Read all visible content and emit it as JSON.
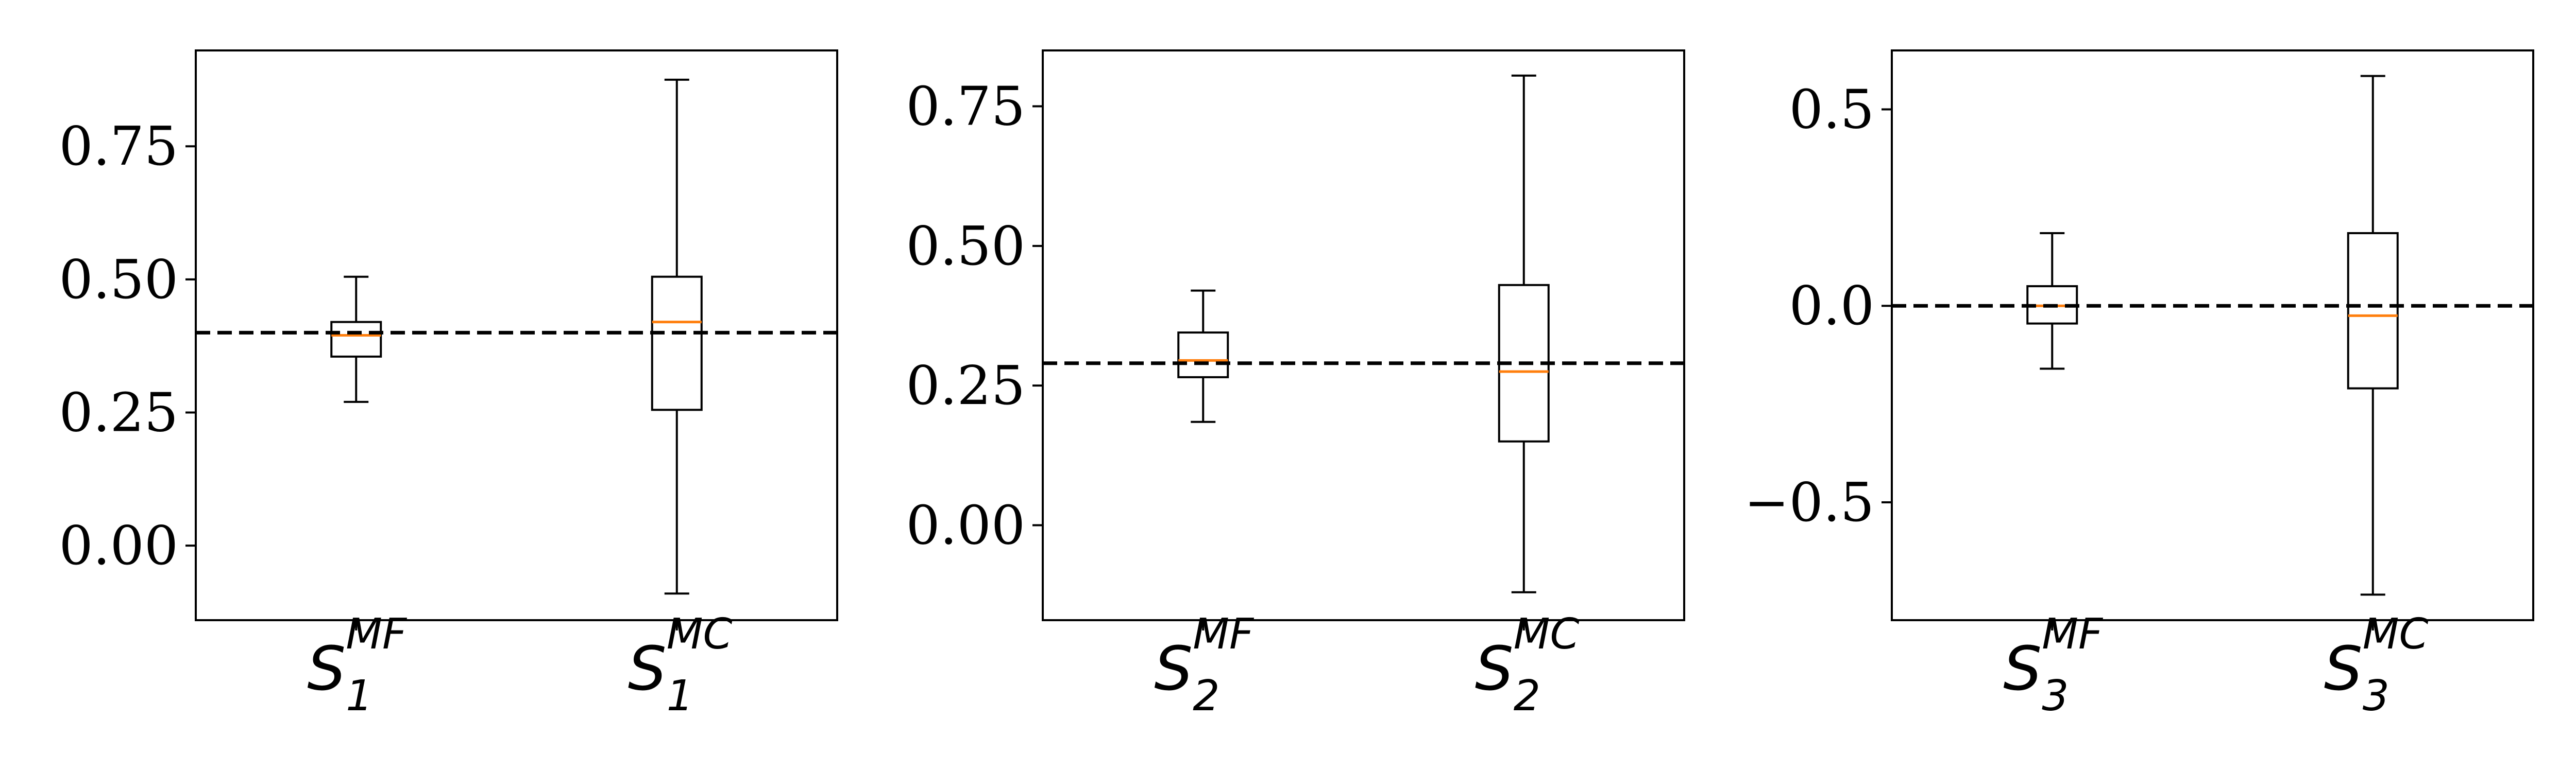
{
  "chart_data": [
    {
      "type": "box",
      "reference_line": 0.4,
      "ylim": [
        -0.14,
        0.93
      ],
      "yticks": [
        {
          "value": 0.0,
          "label": "0.00"
        },
        {
          "value": 0.25,
          "label": "0.25"
        },
        {
          "value": 0.5,
          "label": "0.50"
        },
        {
          "value": 0.75,
          "label": "0.75"
        }
      ],
      "boxes": [
        {
          "label": {
            "main": "S",
            "sub": "1",
            "sup": "MF"
          },
          "whisker_low": 0.27,
          "q1": 0.355,
          "median": 0.395,
          "q3": 0.42,
          "whisker_high": 0.505
        },
        {
          "label": {
            "main": "S",
            "sub": "1",
            "sup": "MC"
          },
          "whisker_low": -0.09,
          "q1": 0.255,
          "median": 0.42,
          "q3": 0.505,
          "whisker_high": 0.875
        }
      ]
    },
    {
      "type": "box",
      "reference_line": 0.29,
      "ylim": [
        -0.17,
        0.85
      ],
      "yticks": [
        {
          "value": 0.0,
          "label": "0.00"
        },
        {
          "value": 0.25,
          "label": "0.25"
        },
        {
          "value": 0.5,
          "label": "0.50"
        },
        {
          "value": 0.75,
          "label": "0.75"
        }
      ],
      "boxes": [
        {
          "label": {
            "main": "S",
            "sub": "2",
            "sup": "MF"
          },
          "whisker_low": 0.185,
          "q1": 0.265,
          "median": 0.295,
          "q3": 0.345,
          "whisker_high": 0.42
        },
        {
          "label": {
            "main": "S",
            "sub": "2",
            "sup": "MC"
          },
          "whisker_low": -0.12,
          "q1": 0.15,
          "median": 0.275,
          "q3": 0.43,
          "whisker_high": 0.805
        }
      ]
    },
    {
      "type": "box",
      "reference_line": 0.0,
      "ylim": [
        -0.8,
        0.65
      ],
      "yticks": [
        {
          "value": -0.5,
          "label": "−0.5"
        },
        {
          "value": 0.0,
          "label": "0.0"
        },
        {
          "value": 0.5,
          "label": "0.5"
        }
      ],
      "boxes": [
        {
          "label": {
            "main": "S",
            "sub": "3",
            "sup": "MF"
          },
          "whisker_low": -0.16,
          "q1": -0.045,
          "median": 0.0,
          "q3": 0.05,
          "whisker_high": 0.185
        },
        {
          "label": {
            "main": "S",
            "sub": "3",
            "sup": "MC"
          },
          "whisker_low": -0.735,
          "q1": -0.21,
          "median": -0.025,
          "q3": 0.185,
          "whisker_high": 0.585
        }
      ]
    }
  ],
  "colors": {
    "box": "#000000",
    "median": "#ff7f0e",
    "reference_line": "#000000"
  }
}
